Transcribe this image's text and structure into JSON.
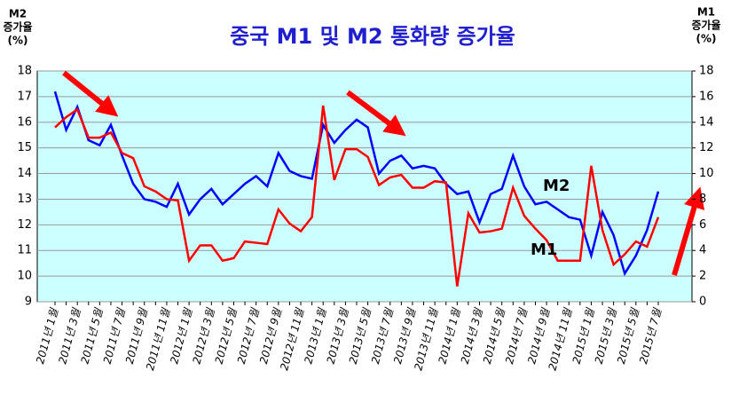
{
  "chart_data": {
    "type": "line",
    "title": "중국 M1 및 M2 통화량 증가율",
    "ylabel": [
      "M2",
      "증가율",
      "(%)"
    ],
    "y2label": [
      "M1",
      "증가율",
      "(%)"
    ],
    "categories": [
      "2011년 1월",
      null,
      "2011년 3월",
      null,
      "2011년 5월",
      null,
      "2011년 7월",
      null,
      "2011년 9월",
      null,
      "2011년 11월",
      null,
      "2012년 1월",
      null,
      "2012년 3월",
      null,
      "2012년 5월",
      null,
      "2012년 7월",
      null,
      "2012년 9월",
      null,
      "2012년 11월",
      null,
      "2013년 1월",
      null,
      "2013년 3월",
      null,
      "2013년 5월",
      null,
      "2013년 7월",
      null,
      "2013년 9월",
      null,
      "2013년 11월",
      null,
      "2014년 1월",
      null,
      "2014년 3월",
      null,
      "2014년 5월",
      null,
      "2014년 7월",
      null,
      "2014년 9월",
      null,
      "2014년 11월",
      null,
      "2015년 1월",
      null,
      "2015년 3월",
      null,
      "2015년 5월",
      null,
      "2015년 7월"
    ],
    "series": [
      {
        "name": "M2",
        "color": "#0000ff",
        "axis": "y",
        "values": [
          17.2,
          15.7,
          16.6,
          15.3,
          15.1,
          15.9,
          14.7,
          13.6,
          13.0,
          12.9,
          12.7,
          13.6,
          12.4,
          13.0,
          13.4,
          12.8,
          13.2,
          13.6,
          13.9,
          13.5,
          14.8,
          14.1,
          13.9,
          13.8,
          15.9,
          15.2,
          15.7,
          16.1,
          15.8,
          14.0,
          14.5,
          14.7,
          14.2,
          14.3,
          14.2,
          13.6,
          13.2,
          13.3,
          12.1,
          13.2,
          13.4,
          14.7,
          13.5,
          12.8,
          12.9,
          12.6,
          12.3,
          12.2,
          10.8,
          12.5,
          11.6,
          10.1,
          10.8,
          11.8,
          13.3
        ]
      },
      {
        "name": "M1",
        "color": "#ff0000",
        "axis": "y2",
        "values": [
          13.6,
          14.4,
          15.0,
          12.8,
          12.8,
          13.2,
          11.6,
          11.2,
          9.0,
          8.6,
          8.0,
          7.9,
          3.2,
          4.4,
          4.4,
          3.2,
          3.4,
          4.7,
          4.6,
          4.5,
          7.2,
          6.1,
          5.5,
          6.6,
          15.3,
          9.5,
          11.9,
          11.9,
          11.3,
          9.1,
          9.7,
          9.9,
          8.9,
          8.9,
          9.4,
          9.3,
          1.2,
          6.9,
          5.4,
          5.5,
          5.7,
          8.9,
          6.7,
          5.7,
          4.8,
          3.2,
          3.2,
          3.2,
          10.6,
          5.6,
          2.9,
          3.7,
          4.7,
          4.3,
          6.6
        ]
      }
    ],
    "annotations": [
      {
        "text": "M2",
        "series": 0
      },
      {
        "text": "M1",
        "series": 1
      }
    ],
    "ylim": [
      9,
      18
    ],
    "yticks": [
      9,
      10,
      11,
      12,
      13,
      14,
      15,
      16,
      17,
      18
    ],
    "y2lim": [
      0,
      18
    ],
    "y2ticks": [
      0,
      2,
      4,
      6,
      8,
      10,
      12,
      14,
      16,
      18
    ],
    "grid": true,
    "background": "#ccffff"
  }
}
